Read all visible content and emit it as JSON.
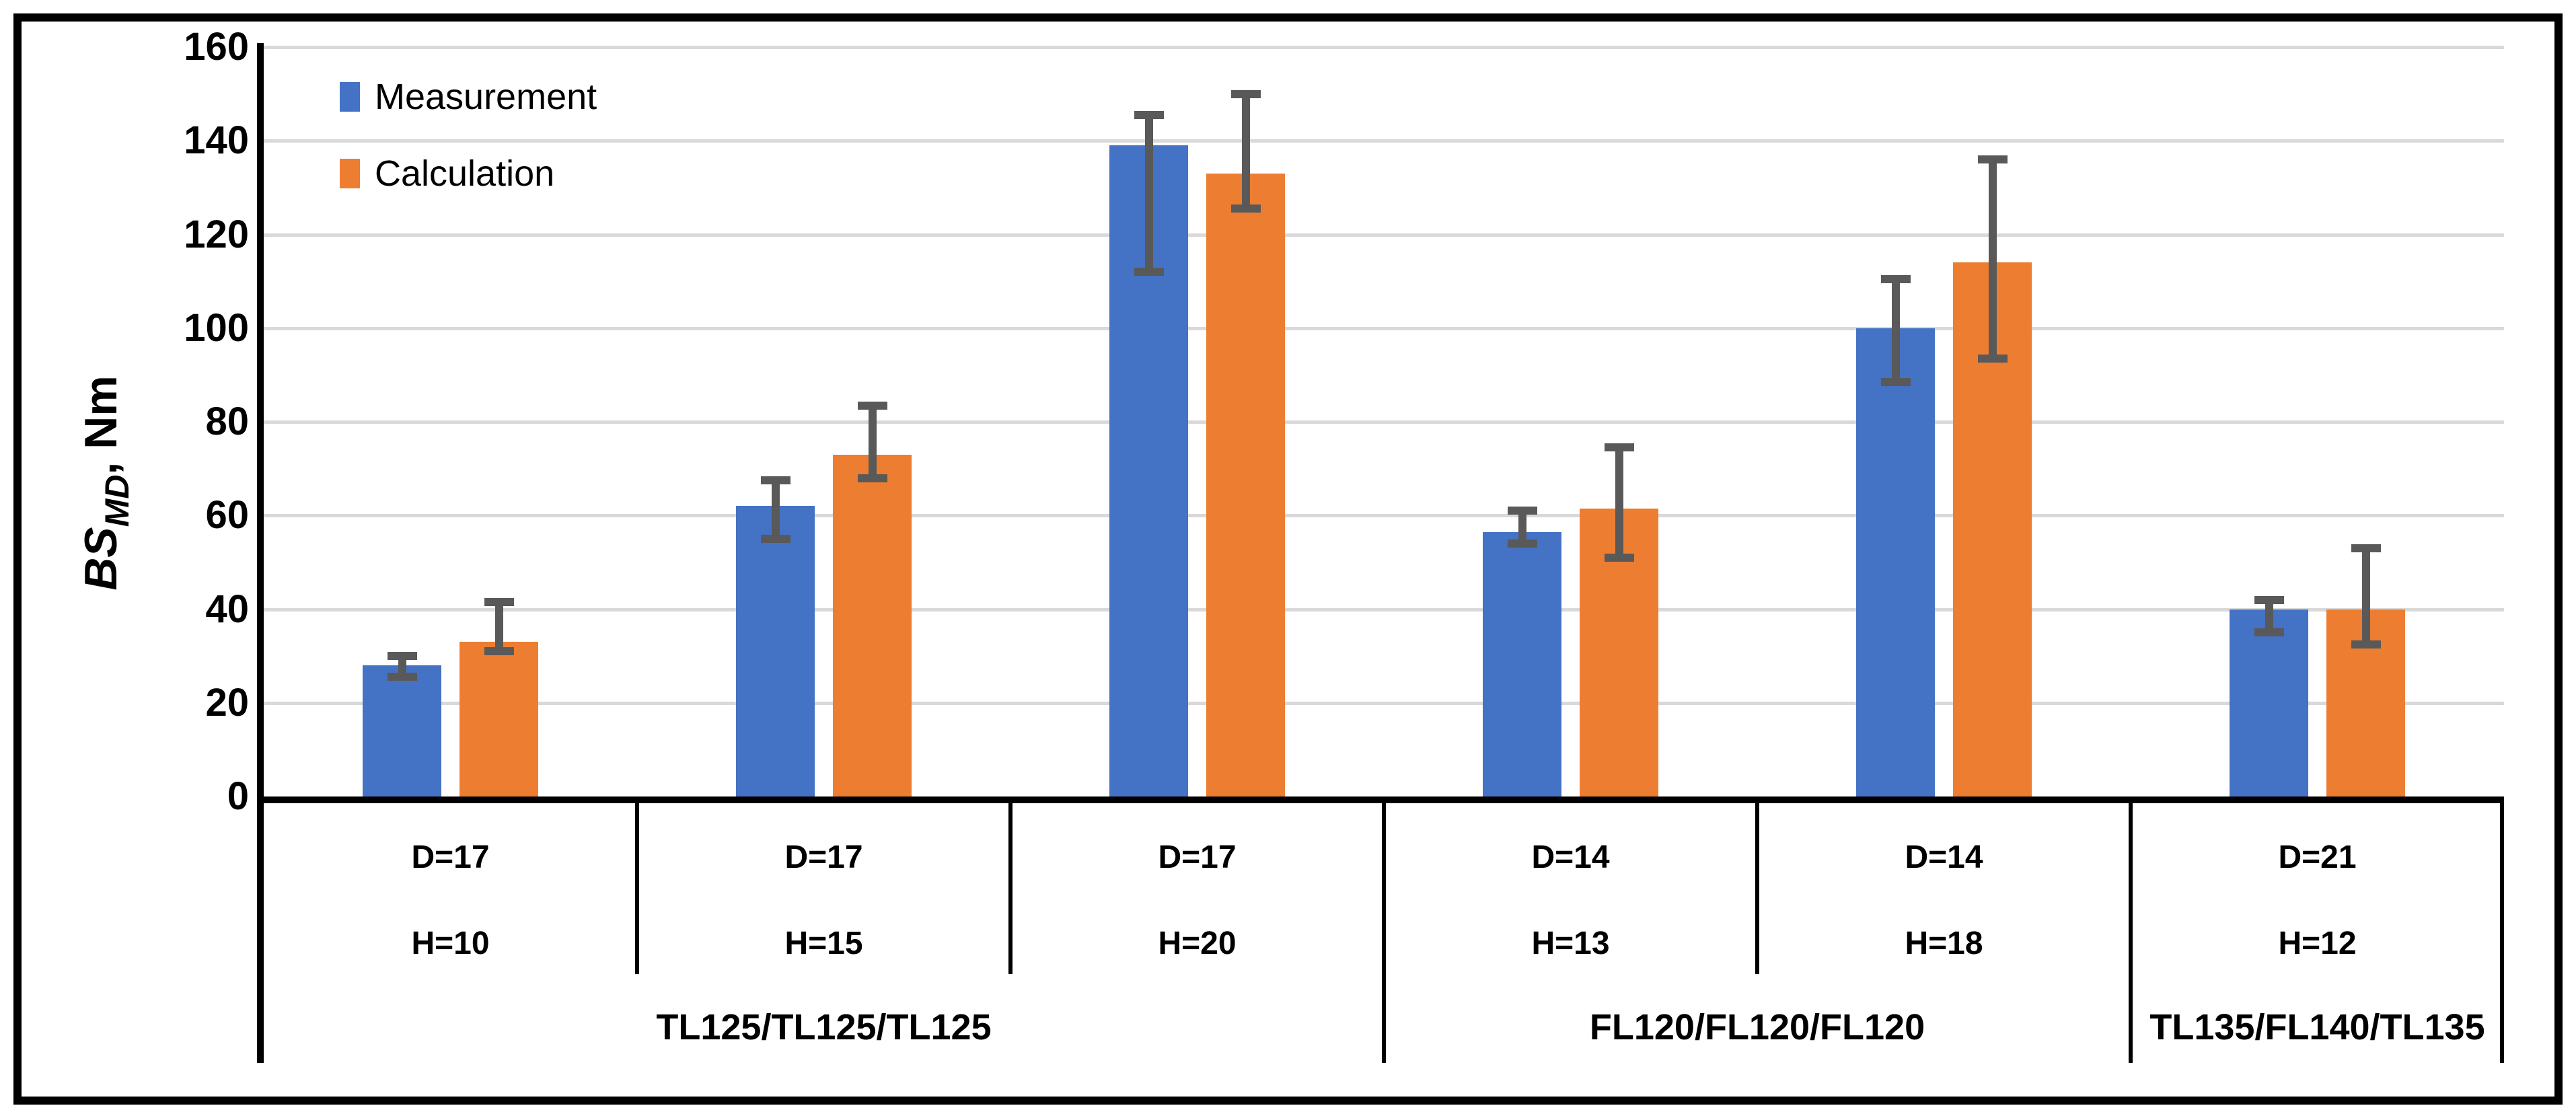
{
  "legend": {
    "items": [
      {
        "label": "Measurement",
        "color": "#4472C4"
      },
      {
        "label": "Calculation",
        "color": "#ED7D31"
      }
    ]
  },
  "y_axis": {
    "title_main": "BS",
    "title_sub": "MD",
    "title_suffix": ", Nm",
    "ticks": [
      0,
      20,
      40,
      60,
      80,
      100,
      120,
      140,
      160
    ]
  },
  "colors": {
    "measurement": "#4472C4",
    "calculation": "#ED7D31",
    "error_bar": "#595959",
    "gridline": "#D9D9D9",
    "axis": "#000000",
    "background": "#FFFFFF"
  },
  "chart_data": {
    "type": "bar",
    "title": "",
    "ylabel": "BS_MD, Nm",
    "ylim": [
      0,
      160
    ],
    "ytick_step": 20,
    "grid": true,
    "legend_position": "top-left",
    "categories": [
      {
        "line1": "D=17",
        "line2": "H=10"
      },
      {
        "line1": "D=17",
        "line2": "H=15"
      },
      {
        "line1": "D=17",
        "line2": "H=20"
      },
      {
        "line1": "D=14",
        "line2": "H=13"
      },
      {
        "line1": "D=14",
        "line2": "H=18"
      },
      {
        "line1": "D=21",
        "line2": "H=12"
      }
    ],
    "groups": [
      {
        "label": "TL125/TL125/TL125",
        "span": 3
      },
      {
        "label": "FL120/FL120/FL120",
        "span": 2
      },
      {
        "label": "TL135/FL140/TL135",
        "span": 1
      }
    ],
    "series": [
      {
        "name": "Measurement",
        "color": "#4472C4",
        "values": [
          28,
          62,
          139,
          56.5,
          100,
          40
        ],
        "error_low": [
          25.5,
          55,
          112,
          54,
          88.5,
          35
        ],
        "error_high": [
          30,
          67.5,
          145.5,
          61,
          110.5,
          42
        ]
      },
      {
        "name": "Calculation",
        "color": "#ED7D31",
        "values": [
          33,
          73,
          133,
          61.5,
          114,
          40
        ],
        "error_low": [
          31,
          68,
          125.5,
          51,
          93.5,
          32.5
        ],
        "error_high": [
          41.5,
          83.5,
          150,
          74.5,
          136,
          53
        ]
      }
    ]
  }
}
